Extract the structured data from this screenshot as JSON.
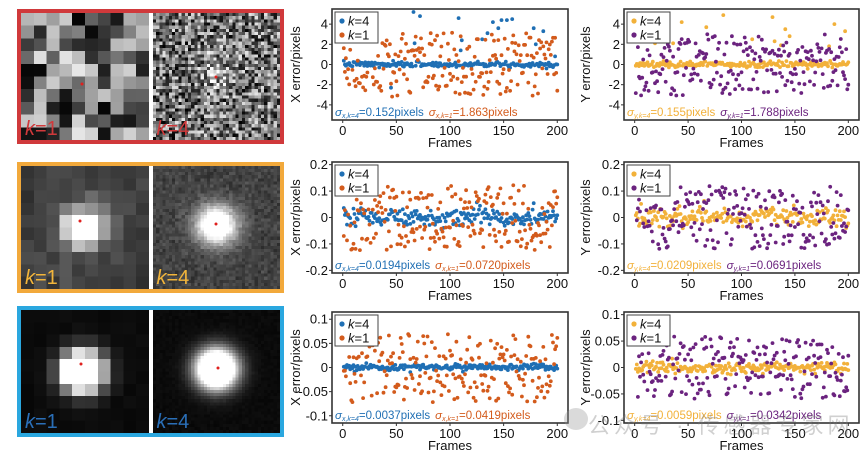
{
  "panels": [
    {
      "border_color": "#d0393b",
      "label_color": "#d0393b",
      "left_label": "k=1",
      "right_label": "k=4",
      "k_sym": "k",
      "left_value": "=1",
      "right_value": "=4",
      "snr": "low"
    },
    {
      "border_color": "#f2a93b",
      "label_color": "#f2b53b",
      "left_label": "k=1",
      "right_label": "k=4",
      "k_sym": "k",
      "left_value": "=1",
      "right_value": "=4",
      "snr": "mid"
    },
    {
      "border_color": "#2aa7df",
      "label_color": "#2a6fb8",
      "left_label": "k=1",
      "right_label": "k=4",
      "k_sym": "k",
      "left_value": "=1",
      "right_value": "=4",
      "snr": "high"
    }
  ],
  "watermark": "公众号 · 传感器专家网",
  "chart_data": [
    {
      "type": "scatter",
      "id": "x-row1",
      "xlabel": "Frames",
      "ylabel": "X error/pixels",
      "xlim": [
        -10,
        210
      ],
      "ylim": [
        -5.5,
        5.5
      ],
      "xticks": [
        0,
        50,
        100,
        150,
        200
      ],
      "yticks": [
        -4,
        -2,
        0,
        2,
        4
      ],
      "ytick_labels": [
        "-4",
        "-2",
        "0",
        "2",
        "4"
      ],
      "legend": "top-left",
      "series": [
        {
          "name": "k=4",
          "color": "#1f6fb4",
          "n": 200,
          "std": 0.152,
          "outliers": [
            [
              66,
              5.2
            ],
            [
              72,
              4.8
            ],
            [
              108,
              4.6
            ],
            [
              140,
              4.2
            ],
            [
              148,
              4.4
            ],
            [
              153,
              4.4
            ],
            [
              158,
              4.5
            ],
            [
              130,
              2.5
            ],
            [
              135,
              3.1
            ],
            [
              145,
              3.6
            ],
            [
              178,
              3.6
            ],
            [
              187,
              3.3
            ],
            [
              111,
              2.4
            ],
            [
              45,
              -2.3
            ],
            [
              67,
              2.1
            ],
            [
              110,
              1.4
            ],
            [
              180,
              2.0
            ],
            [
              198,
              0.8
            ]
          ]
        },
        {
          "name": "k=1",
          "color": "#d35b1c",
          "n": 200,
          "std": 1.863
        }
      ],
      "annotations": [
        {
          "sym": "σ",
          "sub": "x,k=4",
          "text": "=0.152pixels",
          "color": "#1f6fb4"
        },
        {
          "sym": "σ",
          "sub": "x,k=1",
          "text": "=1.863pixels",
          "color": "#d35b1c"
        }
      ]
    },
    {
      "type": "scatter",
      "id": "y-row1",
      "xlabel": "Frames",
      "ylabel": "Y error/pixels",
      "xlim": [
        -10,
        210
      ],
      "ylim": [
        -5.5,
        5.5
      ],
      "xticks": [
        0,
        50,
        100,
        150,
        200
      ],
      "yticks": [
        -4,
        -2,
        0,
        2,
        4
      ],
      "ytick_labels": [
        "-4",
        "-2",
        "0",
        "2",
        "4"
      ],
      "legend": "top-left",
      "series": [
        {
          "name": "k=4",
          "color": "#f2b13a",
          "n": 200,
          "std": 0.155,
          "outliers": [
            [
              83,
              4.9
            ],
            [
              129,
              4.7
            ],
            [
              44,
              4.2
            ],
            [
              67,
              3.7
            ],
            [
              36,
              2.1
            ],
            [
              19,
              2.1
            ],
            [
              187,
              4.0
            ],
            [
              197,
              3.3
            ],
            [
              131,
              2.3
            ],
            [
              141,
              3.5
            ],
            [
              110,
              2.5
            ],
            [
              137,
              1.9
            ],
            [
              145,
              2.8
            ],
            [
              182,
              1.8
            ]
          ]
        },
        {
          "name": "k=1",
          "color": "#6b237f",
          "n": 200,
          "std": 1.788
        }
      ],
      "annotations": [
        {
          "sym": "σ",
          "sub": "y,k=4",
          "text": "=0.155pixels",
          "color": "#f2b13a"
        },
        {
          "sym": "σ",
          "sub": "y,k=1",
          "text": "=1.788pixels",
          "color": "#6b237f"
        }
      ]
    },
    {
      "type": "scatter",
      "id": "x-row2",
      "xlabel": "Frames",
      "ylabel": "X error/pixels",
      "xlim": [
        -10,
        210
      ],
      "ylim": [
        -0.21,
        0.21
      ],
      "xticks": [
        0,
        50,
        100,
        150,
        200
      ],
      "yticks": [
        -0.2,
        -0.1,
        0,
        0.1,
        0.2
      ],
      "ytick_labels": [
        "-0.2",
        "-0.1",
        "0",
        "0.1",
        "0.2"
      ],
      "legend": "top-left",
      "series": [
        {
          "name": "k=4",
          "color": "#1f6fb4",
          "n": 200,
          "std": 0.0194
        },
        {
          "name": "k=1",
          "color": "#d35b1c",
          "n": 200,
          "std": 0.072
        }
      ],
      "annotations": [
        {
          "sym": "σ",
          "sub": "x,k=4",
          "text": "=0.0194pixels",
          "color": "#1f6fb4"
        },
        {
          "sym": "σ",
          "sub": "x,k=1",
          "text": "=0.0720pixels",
          "color": "#d35b1c"
        }
      ]
    },
    {
      "type": "scatter",
      "id": "y-row2",
      "xlabel": "Frames",
      "ylabel": "Y error/pixels",
      "xlim": [
        -10,
        210
      ],
      "ylim": [
        -0.21,
        0.21
      ],
      "xticks": [
        0,
        50,
        100,
        150,
        200
      ],
      "yticks": [
        -0.2,
        -0.1,
        0,
        0.1,
        0.2
      ],
      "ytick_labels": [
        "-0.2",
        "-0.1",
        "0",
        "0.1",
        "0.2"
      ],
      "legend": "top-left",
      "series": [
        {
          "name": "k=4",
          "color": "#f2b13a",
          "n": 200,
          "std": 0.0209
        },
        {
          "name": "k=1",
          "color": "#6b237f",
          "n": 200,
          "std": 0.0691
        }
      ],
      "annotations": [
        {
          "sym": "σ",
          "sub": "y,k=4",
          "text": "=0.0209pixels",
          "color": "#f2b13a"
        },
        {
          "sym": "σ",
          "sub": "y,k=1",
          "text": "=0.0691pixels",
          "color": "#6b237f"
        }
      ]
    },
    {
      "type": "scatter",
      "id": "x-row3",
      "xlabel": "Frames",
      "ylabel": "X error/pixels",
      "xlim": [
        -10,
        210
      ],
      "ylim": [
        -0.115,
        0.115
      ],
      "xticks": [
        0,
        50,
        100,
        150,
        200
      ],
      "yticks": [
        -0.1,
        -0.05,
        0,
        0.05,
        0.1
      ],
      "ytick_labels": [
        "-0.1",
        "-0.05",
        "0",
        "0.05",
        "0.1"
      ],
      "legend": "top-left",
      "series": [
        {
          "name": "k=4",
          "color": "#1f6fb4",
          "n": 200,
          "std": 0.0037
        },
        {
          "name": "k=1",
          "color": "#d35b1c",
          "n": 200,
          "std": 0.0419
        }
      ],
      "annotations": [
        {
          "sym": "σ",
          "sub": "x,k=4",
          "text": "=0.0037pixels",
          "color": "#1f6fb4"
        },
        {
          "sym": "σ",
          "sub": "x,k=1",
          "text": "=0.0419pixels",
          "color": "#d35b1c"
        }
      ]
    },
    {
      "type": "scatter",
      "id": "y-row3",
      "xlabel": "Frames",
      "ylabel": "Y error/pixels",
      "xlim": [
        -10,
        210
      ],
      "ylim": [
        -0.105,
        0.105
      ],
      "xticks": [
        0,
        50,
        100,
        150,
        200
      ],
      "yticks": [
        -0.1,
        -0.05,
        0,
        0.05,
        0.1
      ],
      "ytick_labels": [
        "-0.1",
        "-0.05",
        "0",
        "0.05",
        "0.1"
      ],
      "legend": "top-left",
      "series": [
        {
          "name": "k=4",
          "color": "#f2b13a",
          "n": 200,
          "std": 0.0059
        },
        {
          "name": "k=1",
          "color": "#6b237f",
          "n": 200,
          "std": 0.0342
        }
      ],
      "annotations": [
        {
          "sym": "σ",
          "sub": "y,k=4",
          "text": "=0.0059pixels",
          "color": "#f2b13a"
        },
        {
          "sym": "σ",
          "sub": "y,k=1",
          "text": "=0.0342pixels",
          "color": "#6b237f"
        }
      ]
    }
  ]
}
